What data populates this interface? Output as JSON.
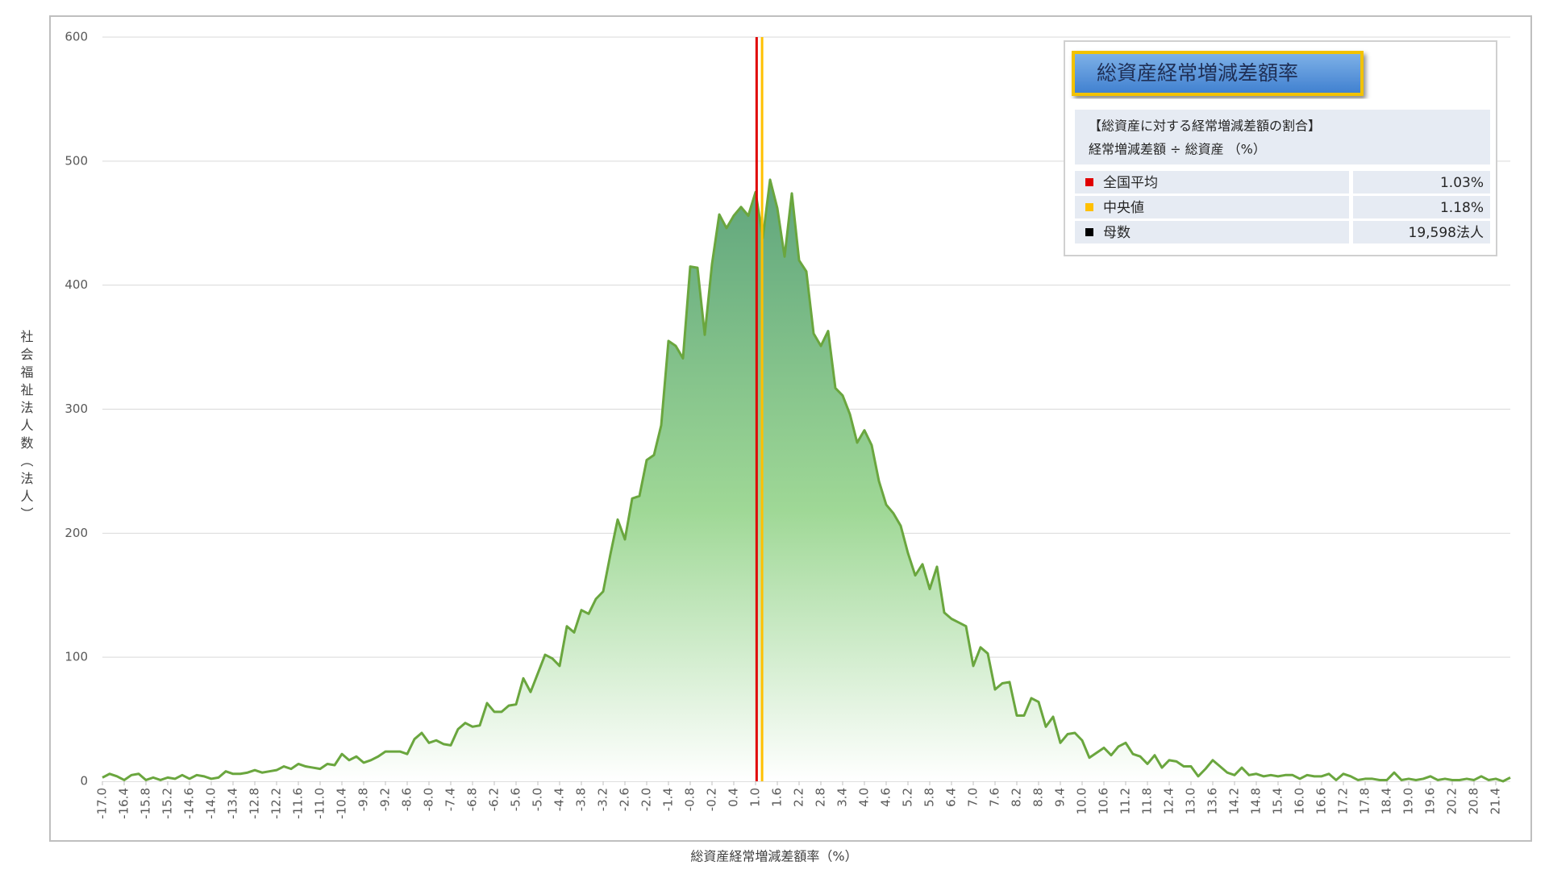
{
  "chart_data": {
    "type": "area",
    "x_label": "総資産経常増減差額率（%）",
    "y_label": "社会福祉法人数（法人）",
    "categories": [
      "-17.0",
      null,
      null,
      "-16.4",
      null,
      null,
      "-15.8",
      null,
      null,
      "-15.2",
      null,
      null,
      "-14.6",
      null,
      null,
      "-14.0",
      null,
      null,
      "-13.4",
      null,
      null,
      "-12.8",
      null,
      null,
      "-12.2",
      null,
      null,
      "-11.6",
      null,
      null,
      "-11.0",
      null,
      null,
      "-10.4",
      null,
      null,
      "-9.8",
      null,
      null,
      "-9.2",
      null,
      null,
      "-8.6",
      null,
      null,
      "-8.0",
      null,
      null,
      "-7.4",
      null,
      null,
      "-6.8",
      null,
      null,
      "-6.2",
      null,
      null,
      "-5.6",
      null,
      null,
      "-5.0",
      null,
      null,
      "-4.4",
      null,
      null,
      "-3.8",
      null,
      null,
      "-3.2",
      null,
      null,
      "-2.6",
      null,
      null,
      "-2.0",
      null,
      null,
      "-1.4",
      null,
      null,
      "-0.8",
      null,
      null,
      "-0.2",
      null,
      null,
      "0.4",
      null,
      null,
      "1.0",
      null,
      null,
      "1.6",
      null,
      null,
      "2.2",
      null,
      null,
      "2.8",
      null,
      null,
      "3.4",
      null,
      null,
      "4.0",
      null,
      null,
      "4.6",
      null,
      null,
      "5.2",
      null,
      null,
      "5.8",
      null,
      null,
      "6.4",
      null,
      null,
      "7.0",
      null,
      null,
      "7.6",
      null,
      null,
      "8.2",
      null,
      null,
      "8.8",
      null,
      null,
      "9.4",
      null,
      null,
      "10.0",
      null,
      null,
      "10.6",
      null,
      null,
      "11.2",
      null,
      null,
      "11.8",
      null,
      null,
      "12.4",
      null,
      null,
      "13.0",
      null,
      null,
      "13.6",
      null,
      null,
      "14.2",
      null,
      null,
      "14.8",
      null,
      null,
      "15.4",
      null,
      null,
      "16.0",
      null,
      null,
      "16.6",
      null,
      null,
      "17.2",
      null,
      null,
      "17.8",
      null,
      null,
      "18.4",
      null,
      null,
      "19.0",
      null,
      null,
      "19.6",
      null,
      null,
      "20.2",
      null,
      null,
      "20.8",
      null,
      null,
      "21.4",
      null,
      null
    ],
    "values": [
      3,
      6,
      4,
      1,
      5,
      6,
      1,
      3,
      1,
      3,
      2,
      5,
      2,
      5,
      4,
      2,
      3,
      8,
      6,
      6,
      7,
      9,
      7,
      8,
      9,
      12,
      10,
      14,
      12,
      11,
      10,
      14,
      13,
      22,
      17,
      20,
      15,
      17,
      20,
      24,
      24,
      24,
      22,
      34,
      39,
      31,
      33,
      30,
      29,
      42,
      47,
      44,
      45,
      63,
      56,
      56,
      61,
      62,
      83,
      72,
      87,
      102,
      99,
      93,
      125,
      120,
      138,
      135,
      147,
      153,
      183,
      211,
      195,
      228,
      230,
      259,
      263,
      287,
      355,
      351,
      341,
      415,
      414,
      360,
      417,
      457,
      446,
      456,
      463,
      456,
      475,
      438,
      485,
      462,
      423,
      474,
      420,
      411,
      361,
      351,
      363,
      317,
      311,
      296,
      273,
      283,
      271,
      242,
      223,
      216,
      206,
      184,
      166,
      175,
      155,
      173,
      136,
      131,
      128,
      125,
      93,
      108,
      103,
      74,
      79,
      80,
      53,
      53,
      67,
      64,
      44,
      52,
      31,
      38,
      39,
      33,
      19,
      23,
      27,
      21,
      28,
      31,
      22,
      20,
      14,
      21,
      11,
      17,
      16,
      12,
      12,
      4,
      10,
      17,
      12,
      7,
      5,
      11,
      5,
      6,
      4,
      5,
      4,
      5,
      5,
      2,
      5,
      4,
      4,
      6,
      1,
      6,
      4,
      1,
      2,
      2,
      1,
      1,
      7,
      1,
      2,
      1,
      2,
      4,
      1,
      2,
      1,
      1,
      2,
      1,
      4,
      1,
      2,
      0,
      3
    ],
    "color": "#6aa63e",
    "ylim": [
      0,
      600
    ],
    "yticks": [
      0,
      100,
      200,
      300,
      400,
      500,
      600
    ],
    "grid": true,
    "legend_title": "総資産経常増減差額率",
    "legend_note": [
      "【総資産に対する経常増減差額の割合】",
      "経常増減差額 ÷ 総資産 （%）"
    ],
    "reference_lines": [
      {
        "name": "全国平均",
        "color": "#e00000",
        "value": 1.03,
        "value_label": "1.03%"
      },
      {
        "name": "中央値",
        "color": "#ffc000",
        "value": 1.18,
        "value_label": "1.18%"
      }
    ],
    "population": {
      "name": "母数",
      "color": "#000000",
      "value": 19598,
      "value_label": "19,598法人"
    }
  }
}
